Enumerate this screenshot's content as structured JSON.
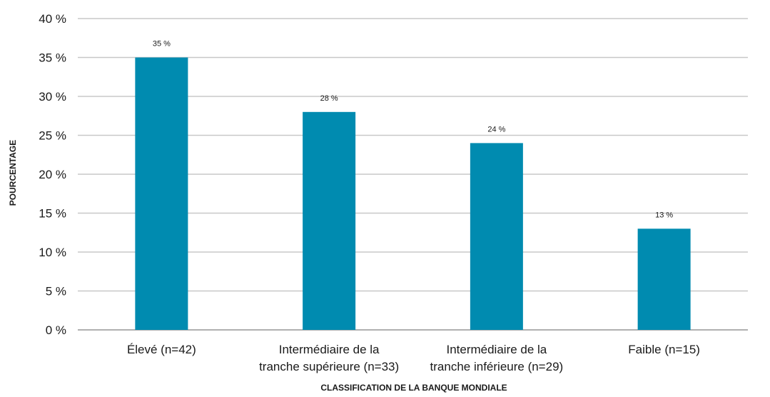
{
  "chart_data": {
    "type": "bar",
    "title": "",
    "xlabel": "CLASSIFICATION DE LA BANQUE MONDIALE",
    "ylabel": "POURCENTAGE",
    "categories": [
      [
        "Élevé (n=42)"
      ],
      [
        "Intermédiaire de la",
        "tranche supérieure (n=33)"
      ],
      [
        "Intermédiaire de la",
        "tranche inférieure (n=29)"
      ],
      [
        "Faible (n=15)"
      ]
    ],
    "values": [
      35,
      28,
      24,
      13
    ],
    "data_labels": [
      "35 %",
      "28 %",
      "24 %",
      "13 %"
    ],
    "ylim": [
      0,
      40
    ],
    "yticks": [
      0,
      5,
      10,
      15,
      20,
      25,
      30,
      35,
      40
    ],
    "ytick_labels": [
      "0 %",
      "5 %",
      "10 %",
      "15 %",
      "20 %",
      "25 %",
      "30 %",
      "35 %",
      "40 %"
    ],
    "grid": true,
    "legend": "none",
    "bar_color": "#008bb0"
  }
}
